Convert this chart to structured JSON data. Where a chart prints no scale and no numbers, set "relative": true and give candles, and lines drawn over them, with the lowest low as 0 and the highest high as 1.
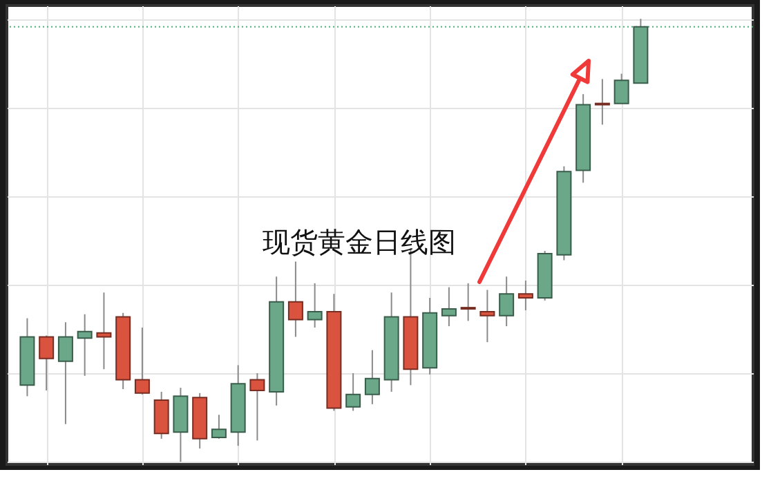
{
  "chart_data": {
    "type": "candlestick",
    "title": "现货黄金日线图",
    "relative": true,
    "grid": true,
    "categories": [
      null,
      null,
      null,
      null,
      null,
      null,
      null,
      null,
      null,
      null,
      null,
      null,
      null,
      null,
      null,
      null,
      null,
      null,
      null,
      null,
      null,
      null,
      null,
      null,
      null,
      null,
      null,
      null,
      null,
      null,
      null,
      null,
      null
    ],
    "ohlc": [
      [
        0.173,
        0.324,
        0.148,
        0.282
      ],
      [
        0.282,
        0.285,
        0.161,
        0.233
      ],
      [
        0.227,
        0.315,
        0.085,
        0.282
      ],
      [
        0.279,
        0.333,
        0.194,
        0.294
      ],
      [
        0.291,
        0.382,
        0.209,
        0.282
      ],
      [
        0.327,
        0.336,
        0.164,
        0.185
      ],
      [
        0.185,
        0.303,
        0.152,
        0.155
      ],
      [
        0.139,
        0.158,
        0.052,
        0.064
      ],
      [
        0.067,
        0.167,
        0.0,
        0.148
      ],
      [
        0.145,
        0.155,
        0.03,
        0.052
      ],
      [
        0.055,
        0.106,
        0.052,
        0.073
      ],
      [
        0.067,
        0.218,
        0.036,
        0.176
      ],
      [
        0.185,
        0.2,
        0.048,
        0.161
      ],
      [
        0.158,
        0.418,
        0.127,
        0.361
      ],
      [
        0.361,
        0.452,
        0.282,
        0.321
      ],
      [
        0.321,
        0.403,
        0.303,
        0.339
      ],
      [
        0.339,
        0.379,
        0.115,
        0.121
      ],
      [
        0.124,
        0.2,
        0.115,
        0.152
      ],
      [
        0.152,
        0.252,
        0.13,
        0.188
      ],
      [
        0.185,
        0.382,
        0.158,
        0.327
      ],
      [
        0.327,
        0.482,
        0.173,
        0.209
      ],
      [
        0.212,
        0.37,
        0.197,
        0.336
      ],
      [
        0.33,
        0.394,
        0.306,
        0.345
      ],
      [
        0.348,
        0.403,
        0.318,
        0.345
      ],
      [
        0.339,
        0.388,
        0.27,
        0.33
      ],
      [
        0.33,
        0.418,
        0.306,
        0.379
      ],
      [
        0.379,
        0.409,
        0.342,
        0.37
      ],
      [
        0.37,
        0.476,
        0.364,
        0.47
      ],
      [
        0.467,
        0.667,
        0.455,
        0.655
      ],
      [
        0.658,
        0.83,
        0.63,
        0.806
      ],
      [
        0.809,
        0.864,
        0.761,
        0.806
      ],
      [
        0.809,
        0.876,
        0.809,
        0.861
      ],
      [
        0.855,
        1.0,
        0.855,
        0.982
      ]
    ],
    "colors": [
      "#6aa889",
      "#d9533f",
      "#6aa889",
      "#6aa889",
      "#d9533f",
      "#d9533f",
      "#d9533f",
      "#d9533f",
      "#6aa889",
      "#d9533f",
      "#6aa889",
      "#6aa889",
      "#d9533f",
      "#6aa889",
      "#d9533f",
      "#6aa889",
      "#d9533f",
      "#6aa889",
      "#6aa889",
      "#6aa889",
      "#d9533f",
      "#6aa889",
      "#6aa889",
      "#d9533f",
      "#d9533f",
      "#6aa889",
      "#d9533f",
      "#6aa889",
      "#6aa889",
      "#6aa889",
      "#d9533f",
      "#6aa889",
      "#6aa889"
    ],
    "ref_lines": [
      {
        "axis": "y",
        "value": 0.982,
        "color": "#4caf7a",
        "line_style": "dotted"
      }
    ]
  }
}
